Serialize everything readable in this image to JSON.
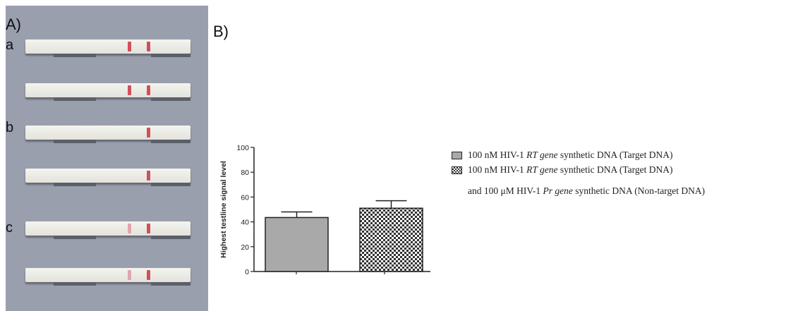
{
  "panel_a": {
    "label": "A)",
    "groups": [
      {
        "letter": "a",
        "strips": [
          {
            "bands": [
              "strong",
              "strong"
            ]
          },
          {
            "bands": [
              "strong",
              "strong"
            ]
          }
        ]
      },
      {
        "letter": "b",
        "strips": [
          {
            "bands": [
              "none",
              "strong"
            ]
          },
          {
            "bands": [
              "none",
              "strong"
            ]
          }
        ]
      },
      {
        "letter": "c",
        "strips": [
          {
            "bands": [
              "faint",
              "strong"
            ]
          },
          {
            "bands": [
              "faint",
              "strong"
            ]
          }
        ]
      }
    ]
  },
  "panel_b": {
    "label": "B)"
  },
  "chart_data": {
    "type": "bar",
    "ylabel": "Highest testline signal level",
    "ylim": [
      0,
      100
    ],
    "yticks": [
      0,
      20,
      40,
      60,
      80,
      100
    ],
    "series": [
      {
        "value": 43.5,
        "error": 4.5,
        "pattern": "grey-fill"
      },
      {
        "value": 51,
        "error": 6,
        "pattern": "checkerboard"
      }
    ],
    "legend": {
      "entries": [
        {
          "pattern": "grey-fill",
          "prefix": "100 nM HIV-1 ",
          "italic": "RT gene",
          "suffix": " synthetic DNA (Target DNA)"
        },
        {
          "pattern": "checkerboard",
          "prefix": "100 nM HIV-1 ",
          "italic": "RT gene",
          "suffix": " synthetic DNA (Target DNA)"
        }
      ],
      "continuation": {
        "prefix": "and 100 μM HIV-1 ",
        "italic": "Pr gene",
        "suffix": " synthetic DNA (Non-target DNA)"
      }
    },
    "colors": {
      "bar_fill": "#a9a9a9",
      "axis": "#222222"
    }
  }
}
